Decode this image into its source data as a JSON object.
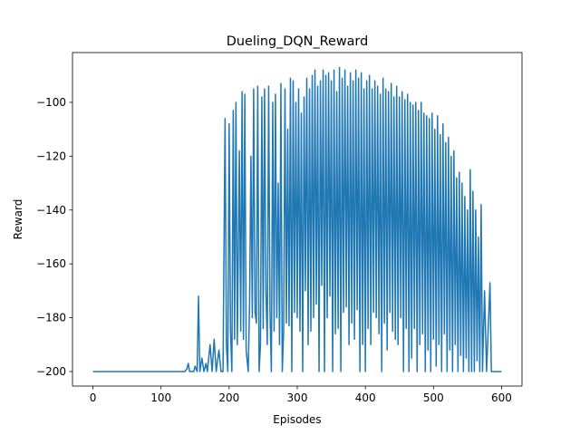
{
  "chart_data": {
    "type": "line",
    "title": "Dueling_DQN_Reward",
    "x_label": "Episodes",
    "y_label": "Reward",
    "xlim": [
      -30,
      630
    ],
    "ylim": [
      -205.4,
      -81.5
    ],
    "xticks": [
      0,
      100,
      200,
      300,
      400,
      500,
      600
    ],
    "yticks": [
      {
        "value": -200,
        "label": "−200"
      },
      {
        "value": -180,
        "label": "−180"
      },
      {
        "value": -160,
        "label": "−160"
      },
      {
        "value": -140,
        "label": "−140"
      },
      {
        "value": -120,
        "label": "−120"
      },
      {
        "value": -100,
        "label": "−100"
      }
    ],
    "series": [
      {
        "color": "#1f77b4",
        "x": [
          0,
          135,
          138,
          140,
          142,
          148,
          150,
          153,
          155,
          157,
          160,
          163,
          166,
          168,
          172,
          175,
          178,
          181,
          185,
          188,
          191,
          194,
          196,
          198,
          200,
          202,
          204,
          206,
          208,
          210,
          212,
          215,
          217,
          219,
          221,
          223,
          225,
          228,
          230,
          232,
          234,
          236,
          238,
          240,
          242,
          244,
          246,
          248,
          250,
          252,
          254,
          256,
          258,
          260,
          262,
          264,
          266,
          268,
          270,
          272,
          274,
          276,
          278,
          280,
          282,
          284,
          286,
          288,
          290,
          292,
          294,
          296,
          298,
          300,
          302,
          304,
          306,
          308,
          310,
          312,
          314,
          316,
          318,
          320,
          322,
          324,
          326,
          328,
          330,
          332,
          334,
          336,
          338,
          340,
          342,
          344,
          346,
          348,
          350,
          352,
          354,
          356,
          358,
          360,
          362,
          364,
          366,
          368,
          370,
          372,
          374,
          376,
          378,
          380,
          382,
          384,
          386,
          388,
          390,
          392,
          394,
          396,
          398,
          400,
          402,
          404,
          406,
          408,
          410,
          412,
          414,
          416,
          418,
          420,
          422,
          424,
          426,
          428,
          430,
          432,
          434,
          436,
          438,
          440,
          442,
          444,
          446,
          448,
          450,
          452,
          454,
          456,
          458,
          460,
          462,
          464,
          466,
          468,
          470,
          472,
          474,
          476,
          478,
          480,
          482,
          484,
          486,
          488,
          490,
          492,
          494,
          496,
          498,
          500,
          502,
          504,
          506,
          508,
          510,
          512,
          514,
          516,
          518,
          520,
          522,
          524,
          526,
          528,
          530,
          532,
          534,
          536,
          538,
          540,
          542,
          544,
          546,
          548,
          550,
          552,
          554,
          556,
          558,
          560,
          562,
          564,
          566,
          568,
          570,
          572,
          575,
          578,
          583,
          585,
          600
        ],
        "values": [
          -200,
          -200,
          -199,
          -197,
          -200,
          -200,
          -198,
          -200,
          -172,
          -200,
          -195,
          -200,
          -197,
          -200,
          -190,
          -200,
          -188,
          -200,
          -192,
          -200,
          -200,
          -106,
          -190,
          -200,
          -108,
          -185,
          -200,
          -103,
          -188,
          -100,
          -190,
          -118,
          -185,
          -96,
          -188,
          -97,
          -192,
          -200,
          -175,
          -120,
          -180,
          -95,
          -178,
          -182,
          -94,
          -200,
          -190,
          -98,
          -184,
          -95,
          -170,
          -190,
          -94,
          -178,
          -200,
          -100,
          -185,
          -97,
          -180,
          -130,
          -190,
          -93,
          -200,
          -185,
          -95,
          -182,
          -110,
          -183,
          -91,
          -200,
          -92,
          -178,
          -100,
          -180,
          -95,
          -185,
          -104,
          -200,
          -98,
          -170,
          -91,
          -190,
          -95,
          -185,
          -90,
          -180,
          -88,
          -175,
          -94,
          -200,
          -92,
          -168,
          -88,
          -200,
          -90,
          -180,
          -89,
          -172,
          -92,
          -200,
          -88,
          -186,
          -96,
          -184,
          -87,
          -200,
          -91,
          -178,
          -88,
          -176,
          -94,
          -190,
          -89,
          -182,
          -92,
          -188,
          -88,
          -177,
          -91,
          -200,
          -89,
          -190,
          -95,
          -200,
          -92,
          -184,
          -90,
          -190,
          -95,
          -178,
          -92,
          -180,
          -94,
          -186,
          -97,
          -200,
          -91,
          -182,
          -95,
          -192,
          -96,
          -178,
          -93,
          -185,
          -98,
          -188,
          -94,
          -190,
          -98,
          -180,
          -96,
          -200,
          -99,
          -184,
          -97,
          -200,
          -100,
          -195,
          -101,
          -184,
          -100,
          -200,
          -103,
          -190,
          -100,
          -186,
          -104,
          -200,
          -105,
          -192,
          -106,
          -200,
          -104,
          -188,
          -110,
          -198,
          -105,
          -190,
          -112,
          -200,
          -108,
          -186,
          -115,
          -200,
          -113,
          -192,
          -120,
          -200,
          -118,
          -190,
          -128,
          -200,
          -126,
          -194,
          -130,
          -200,
          -135,
          -195,
          -140,
          -200,
          -125,
          -200,
          -133,
          -200,
          -140,
          -196,
          -150,
          -200,
          -138,
          -200,
          -170,
          -200,
          -167,
          -200,
          -200
        ]
      }
    ]
  }
}
